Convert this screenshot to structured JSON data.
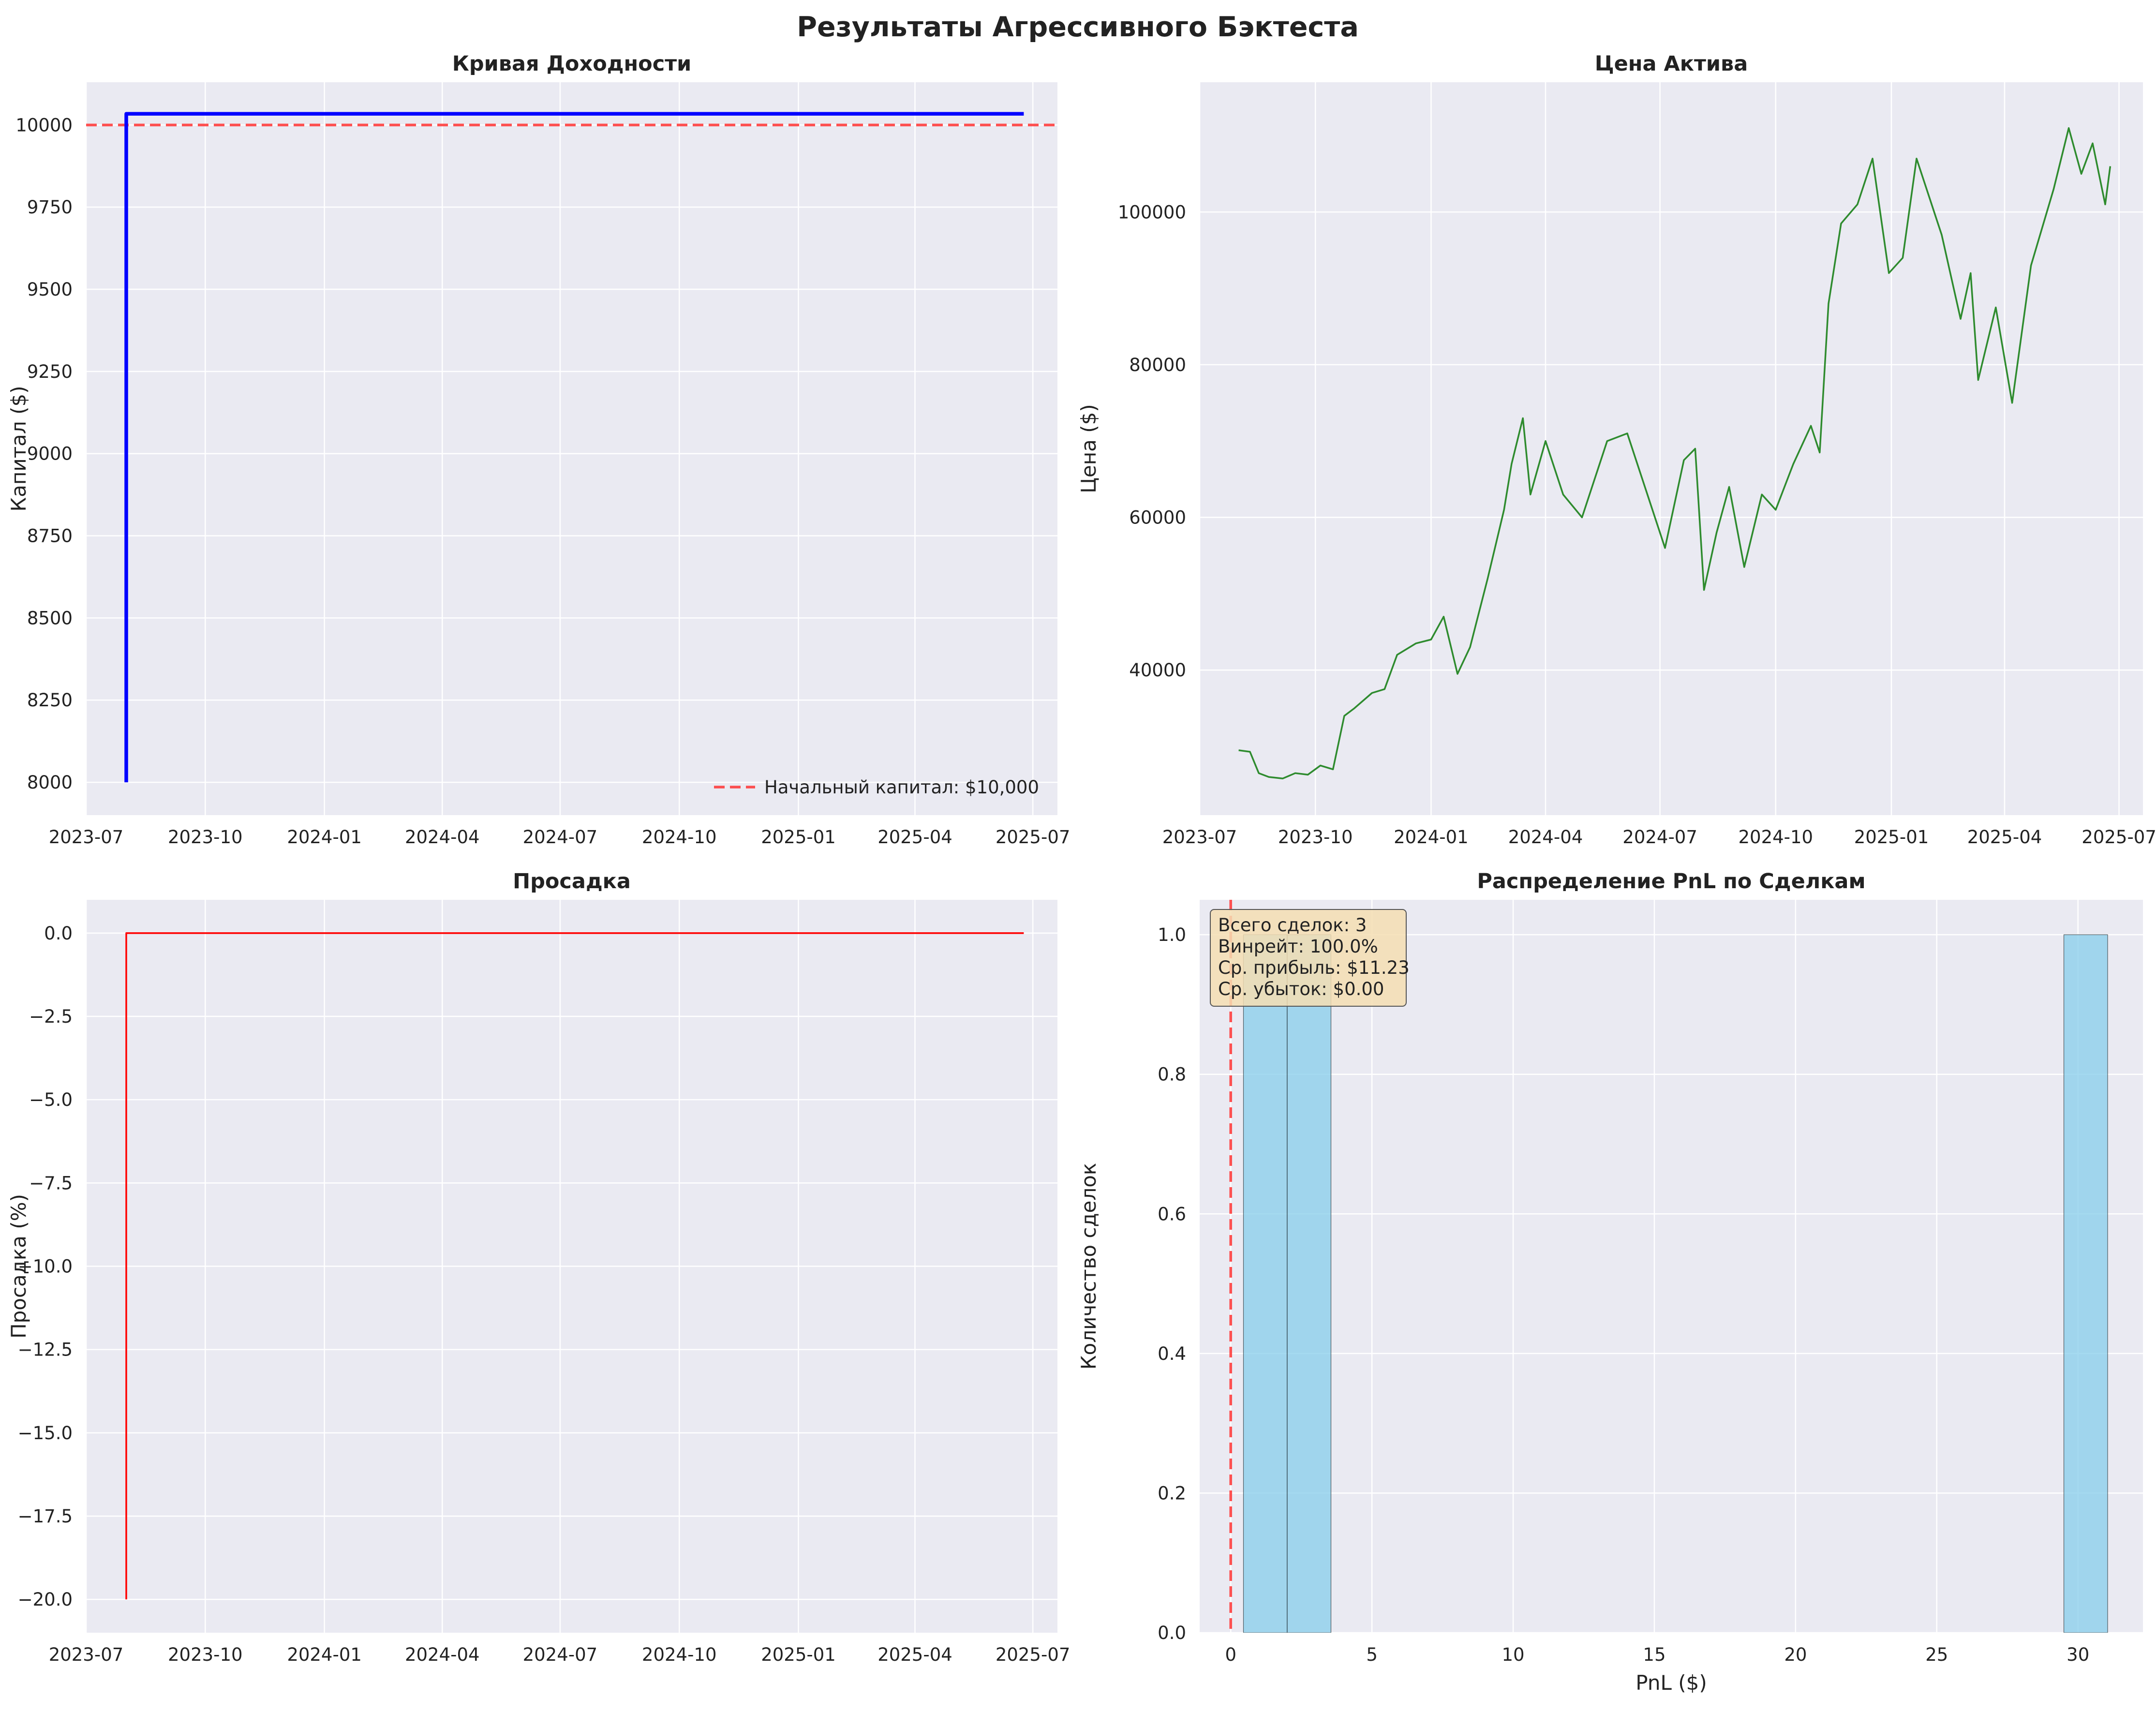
{
  "figure": {
    "suptitle": "Результаты Агрессивного Бэктеста",
    "background": "#ffffff",
    "axes_face": "#eaeaf2",
    "grid_color": "#ffffff"
  },
  "chart_data": [
    {
      "id": "equity",
      "type": "line",
      "title": "Кривая Доходности",
      "xlabel": "",
      "ylabel": "Капитал ($)",
      "x_type": "date",
      "xlim": [
        "2023-07-01",
        "2025-07-20"
      ],
      "ylim": [
        7900,
        10130
      ],
      "x_ticks": [
        "2023-07-01",
        "2023-10-01",
        "2024-01-01",
        "2024-04-01",
        "2024-07-01",
        "2024-10-01",
        "2025-01-01",
        "2025-04-01",
        "2025-07-01"
      ],
      "x_tick_labels": [
        "2023-07",
        "2023-10",
        "2024-01",
        "2024-04",
        "2024-07",
        "2024-10",
        "2025-01",
        "2025-04",
        "2025-07"
      ],
      "y_ticks": [
        8000,
        8250,
        8500,
        8750,
        9000,
        9250,
        9500,
        9750,
        10000
      ],
      "y_tick_labels": [
        "8000",
        "8250",
        "8500",
        "8750",
        "9000",
        "9250",
        "9500",
        "9750",
        "10000"
      ],
      "series": [
        {
          "color": "#0000ff",
          "points": [
            [
              "2023-08-01",
              8000
            ],
            [
              "2023-08-01",
              10034
            ],
            [
              "2025-06-24",
              10034
            ]
          ]
        }
      ],
      "hlines": [
        {
          "y": 10000,
          "color": "#ff3333",
          "style": "dashed",
          "label": "Начальный капитал: $10,000"
        }
      ],
      "legend": {
        "position": "lower-right",
        "entries": [
          "Начальный капитал: $10,000"
        ]
      },
      "grid": true
    },
    {
      "id": "price",
      "type": "line",
      "title": "Цена Актива",
      "xlabel": "",
      "ylabel": "Цена ($)",
      "x_type": "date",
      "xlim": [
        "2023-07-01",
        "2025-07-20"
      ],
      "ylim": [
        21000,
        117000
      ],
      "x_ticks": [
        "2023-07-01",
        "2023-10-01",
        "2024-01-01",
        "2024-04-01",
        "2024-07-01",
        "2024-10-01",
        "2025-01-01",
        "2025-04-01",
        "2025-07-01"
      ],
      "x_tick_labels": [
        "2023-07",
        "2023-10",
        "2024-01",
        "2024-04",
        "2024-07",
        "2024-10",
        "2025-01",
        "2025-04",
        "2025-07"
      ],
      "y_ticks": [
        40000,
        60000,
        80000,
        100000
      ],
      "y_tick_labels": [
        "40000",
        "60000",
        "80000",
        "100000"
      ],
      "series": [
        {
          "color": "#2e8b2e",
          "points": [
            [
              "2023-08-01",
              29500
            ],
            [
              "2023-08-10",
              29300
            ],
            [
              "2023-08-17",
              26500
            ],
            [
              "2023-08-25",
              26000
            ],
            [
              "2023-09-05",
              25800
            ],
            [
              "2023-09-15",
              26500
            ],
            [
              "2023-09-25",
              26300
            ],
            [
              "2023-10-05",
              27500
            ],
            [
              "2023-10-15",
              27000
            ],
            [
              "2023-10-24",
              34000
            ],
            [
              "2023-11-01",
              35000
            ],
            [
              "2023-11-15",
              37000
            ],
            [
              "2023-11-25",
              37500
            ],
            [
              "2023-12-05",
              42000
            ],
            [
              "2023-12-20",
              43500
            ],
            [
              "2024-01-01",
              44000
            ],
            [
              "2024-01-11",
              47000
            ],
            [
              "2024-01-22",
              39500
            ],
            [
              "2024-02-01",
              43000
            ],
            [
              "2024-02-15",
              52000
            ],
            [
              "2024-02-28",
              61000
            ],
            [
              "2024-03-05",
              67000
            ],
            [
              "2024-03-14",
              73000
            ],
            [
              "2024-03-20",
              63000
            ],
            [
              "2024-04-01",
              70000
            ],
            [
              "2024-04-15",
              63000
            ],
            [
              "2024-04-30",
              60000
            ],
            [
              "2024-05-20",
              70000
            ],
            [
              "2024-06-05",
              71000
            ],
            [
              "2024-06-25",
              61000
            ],
            [
              "2024-07-05",
              56000
            ],
            [
              "2024-07-20",
              67500
            ],
            [
              "2024-07-29",
              69000
            ],
            [
              "2024-08-05",
              50500
            ],
            [
              "2024-08-15",
              58000
            ],
            [
              "2024-08-25",
              64000
            ],
            [
              "2024-09-06",
              53500
            ],
            [
              "2024-09-20",
              63000
            ],
            [
              "2024-10-01",
              61000
            ],
            [
              "2024-10-15",
              67000
            ],
            [
              "2024-10-29",
              72000
            ],
            [
              "2024-11-05",
              68500
            ],
            [
              "2024-11-12",
              88000
            ],
            [
              "2024-11-22",
              98500
            ],
            [
              "2024-12-05",
              101000
            ],
            [
              "2024-12-17",
              107000
            ],
            [
              "2024-12-30",
              92000
            ],
            [
              "2025-01-10",
              94000
            ],
            [
              "2025-01-21",
              107000
            ],
            [
              "2025-01-31",
              102000
            ],
            [
              "2025-02-10",
              97000
            ],
            [
              "2025-02-25",
              86000
            ],
            [
              "2025-03-05",
              92000
            ],
            [
              "2025-03-11",
              78000
            ],
            [
              "2025-03-25",
              87500
            ],
            [
              "2025-04-07",
              75000
            ],
            [
              "2025-04-22",
              93000
            ],
            [
              "2025-05-10",
              103000
            ],
            [
              "2025-05-22",
              111000
            ],
            [
              "2025-06-01",
              105000
            ],
            [
              "2025-06-10",
              109000
            ],
            [
              "2025-06-20",
              101000
            ],
            [
              "2025-06-24",
              106000
            ]
          ]
        }
      ],
      "grid": true
    },
    {
      "id": "drawdown",
      "type": "line",
      "title": "Просадка",
      "xlabel": "",
      "ylabel": "Просадка (%)",
      "x_type": "date",
      "xlim": [
        "2023-07-01",
        "2025-07-20"
      ],
      "ylim": [
        -21,
        1
      ],
      "x_ticks": [
        "2023-07-01",
        "2023-10-01",
        "2024-01-01",
        "2024-04-01",
        "2024-07-01",
        "2024-10-01",
        "2025-01-01",
        "2025-04-01",
        "2025-07-01"
      ],
      "x_tick_labels": [
        "2023-07",
        "2023-10",
        "2024-01",
        "2024-04",
        "2024-07",
        "2024-10",
        "2025-01",
        "2025-04",
        "2025-07"
      ],
      "y_ticks": [
        -20,
        -17.5,
        -15,
        -12.5,
        -10,
        -7.5,
        -5,
        -2.5,
        0
      ],
      "y_tick_labels": [
        "−20.0",
        "−17.5",
        "−15.0",
        "−12.5",
        "−10.0",
        "−7.5",
        "−5.0",
        "−2.5",
        "0.0"
      ],
      "series": [
        {
          "color": "#ff0000",
          "points": [
            [
              "2023-08-01",
              -20
            ],
            [
              "2023-08-01",
              0
            ],
            [
              "2025-06-24",
              0
            ]
          ]
        }
      ],
      "grid": true
    },
    {
      "id": "pnl-hist",
      "type": "bar",
      "title": "Распределение PnL по Сделкам",
      "xlabel": "PnL ($)",
      "ylabel": "Количество сделок",
      "xlim": [
        -1.1,
        32.3
      ],
      "ylim": [
        0,
        1.05
      ],
      "x_ticks": [
        0,
        5,
        10,
        15,
        20,
        25,
        30
      ],
      "x_tick_labels": [
        "0",
        "5",
        "10",
        "15",
        "20",
        "25",
        "30"
      ],
      "y_ticks": [
        0,
        0.2,
        0.4,
        0.6,
        0.8,
        1.0
      ],
      "y_tick_labels": [
        "0.0",
        "0.2",
        "0.4",
        "0.6",
        "0.8",
        "1.0"
      ],
      "bars": [
        {
          "x0": 0.45,
          "x1": 2.0,
          "value": 1
        },
        {
          "x0": 2.0,
          "x1": 3.55,
          "value": 1
        },
        {
          "x0": 29.5,
          "x1": 31.05,
          "value": 1
        }
      ],
      "bar_color": "#87ceeb",
      "vlines": [
        {
          "x": 0,
          "color": "#ff3333",
          "style": "dashed"
        }
      ],
      "annotation": [
        "Всего сделок: 3",
        "Винрейт: 100.0%",
        "Ср. прибыль: $11.23",
        "Ср. убыток: $0.00"
      ],
      "grid": true
    }
  ]
}
